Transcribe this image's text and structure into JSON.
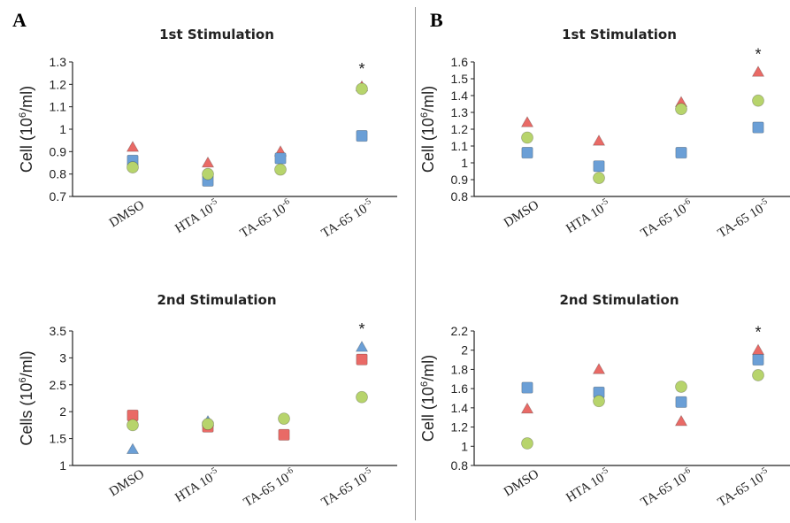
{
  "panels": [
    {
      "letter": "A"
    },
    {
      "letter": "B"
    }
  ],
  "colors": {
    "red": "#e96a66",
    "blue": "#6b9fd6",
    "green": "#b7d46c"
  },
  "chart_data": [
    {
      "panel": "A",
      "type": "scatter",
      "title": "1st Stimulation",
      "ylabel_main": "Cell (10",
      "ylabel_sup": "6",
      "ylabel_end": "/ml)",
      "categories": [
        "DMSO",
        "HTA 10",
        "TA-65 10",
        "TA-65 10"
      ],
      "cat_sup": [
        "",
        "-5",
        "-6",
        "-5"
      ],
      "ylim": [
        0.7,
        1.3
      ],
      "yticks": [
        "0.7",
        "0.8",
        "0.9",
        "1",
        "1.1",
        "1.2",
        "1.3"
      ],
      "series": [
        {
          "marker": "triangle",
          "color": "#e96a66",
          "values": [
            0.92,
            0.85,
            0.9,
            1.19
          ]
        },
        {
          "marker": "square",
          "color": "#6b9fd6",
          "values": [
            0.86,
            0.77,
            0.87,
            0.97
          ]
        },
        {
          "marker": "circle",
          "color": "#b7d46c",
          "values": [
            0.83,
            0.8,
            0.82,
            1.18
          ]
        }
      ],
      "annotation": {
        "text": "*",
        "category": 3
      }
    },
    {
      "panel": "A",
      "type": "scatter",
      "title": "2nd Stimulation",
      "ylabel_main": "Cells (10",
      "ylabel_sup": "6",
      "ylabel_end": "/ml)",
      "categories": [
        "DMSO",
        "HTA 10",
        "TA-65 10",
        "TA-65 10"
      ],
      "cat_sup": [
        "",
        "-5",
        "-6",
        "-5"
      ],
      "ylim": [
        1,
        3.5
      ],
      "yticks": [
        "1",
        "1.5",
        "2",
        "2.5",
        "3",
        "3.5"
      ],
      "series": [
        {
          "marker": "triangle",
          "color": "#6b9fd6",
          "values": [
            1.3,
            1.82,
            null,
            3.2
          ]
        },
        {
          "marker": "square",
          "color": "#e96a66",
          "values": [
            1.93,
            1.72,
            1.57,
            2.97
          ]
        },
        {
          "marker": "circle",
          "color": "#b7d46c",
          "values": [
            1.75,
            1.77,
            1.87,
            2.27
          ]
        }
      ],
      "annotation": {
        "text": "*",
        "category": 3
      }
    },
    {
      "panel": "B",
      "type": "scatter",
      "title": "1st Stimulation",
      "ylabel_main": "Cell (10",
      "ylabel_sup": "6",
      "ylabel_end": "/ml)",
      "categories": [
        "DMSO",
        "HTA 10",
        "TA-65 10",
        "TA-65 10"
      ],
      "cat_sup": [
        "",
        "-5",
        "-6",
        "-5"
      ],
      "ylim": [
        0.8,
        1.6
      ],
      "yticks": [
        "0.8",
        "0.9",
        "1",
        "1.1",
        "1.2",
        "1.3",
        "1.4",
        "1.5",
        "1.6"
      ],
      "series": [
        {
          "marker": "triangle",
          "color": "#e96a66",
          "values": [
            1.24,
            1.13,
            1.36,
            1.54
          ]
        },
        {
          "marker": "square",
          "color": "#6b9fd6",
          "values": [
            1.06,
            0.98,
            1.06,
            1.21
          ]
        },
        {
          "marker": "circle",
          "color": "#b7d46c",
          "values": [
            1.15,
            0.91,
            1.32,
            1.37
          ]
        }
      ],
      "annotation": {
        "text": "*",
        "category": 3
      }
    },
    {
      "panel": "B",
      "type": "scatter",
      "title": "2nd Stimulation",
      "ylabel_main": "Cell (10",
      "ylabel_sup": "6",
      "ylabel_end": "/ml)",
      "categories": [
        "DMSO",
        "HTA 10",
        "TA-65 10",
        "TA-65 10"
      ],
      "cat_sup": [
        "",
        "-5",
        "-6",
        "-5"
      ],
      "ylim": [
        0.8,
        2.2
      ],
      "yticks": [
        "0.8",
        "1",
        "1.2",
        "1.4",
        "1.6",
        "1.8",
        "2",
        "2.2"
      ],
      "series": [
        {
          "marker": "triangle",
          "color": "#e96a66",
          "values": [
            1.39,
            1.8,
            1.26,
            2.0
          ]
        },
        {
          "marker": "square",
          "color": "#6b9fd6",
          "values": [
            1.61,
            1.56,
            1.46,
            1.9
          ]
        },
        {
          "marker": "circle",
          "color": "#b7d46c",
          "values": [
            1.03,
            1.47,
            1.62,
            1.74
          ]
        }
      ],
      "annotation": {
        "text": "*",
        "category": 3
      }
    }
  ]
}
